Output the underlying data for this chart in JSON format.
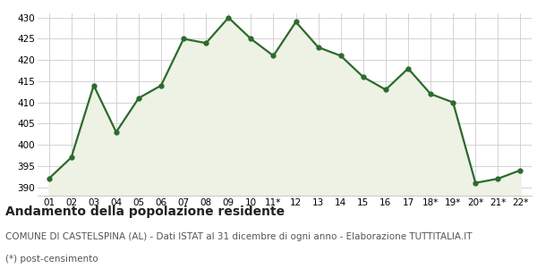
{
  "x_labels": [
    "01",
    "02",
    "03",
    "04",
    "05",
    "06",
    "07",
    "08",
    "09",
    "10",
    "11*",
    "12",
    "13",
    "14",
    "15",
    "16",
    "17",
    "18*",
    "19*",
    "20*",
    "21*",
    "22*"
  ],
  "y_values": [
    392,
    397,
    414,
    403,
    411,
    414,
    425,
    424,
    430,
    425,
    421,
    429,
    423,
    421,
    416,
    413,
    418,
    412,
    410,
    391,
    392,
    394
  ],
  "line_color": "#2d6a2d",
  "fill_color": "#edf2e4",
  "marker": "o",
  "marker_size": 3.5,
  "line_width": 1.6,
  "ylim": [
    388,
    431
  ],
  "yticks": [
    390,
    395,
    400,
    405,
    410,
    415,
    420,
    425,
    430
  ],
  "grid_color": "#cccccc",
  "bg_color": "#ffffff",
  "title": "Andamento della popolazione residente",
  "subtitle": "COMUNE DI CASTELSPINA (AL) - Dati ISTAT al 31 dicembre di ogni anno - Elaborazione TUTTITALIA.IT",
  "footnote": "(*) post-censimento",
  "title_fontsize": 10,
  "subtitle_fontsize": 7.5,
  "footnote_fontsize": 7.5,
  "tick_fontsize": 7.5
}
